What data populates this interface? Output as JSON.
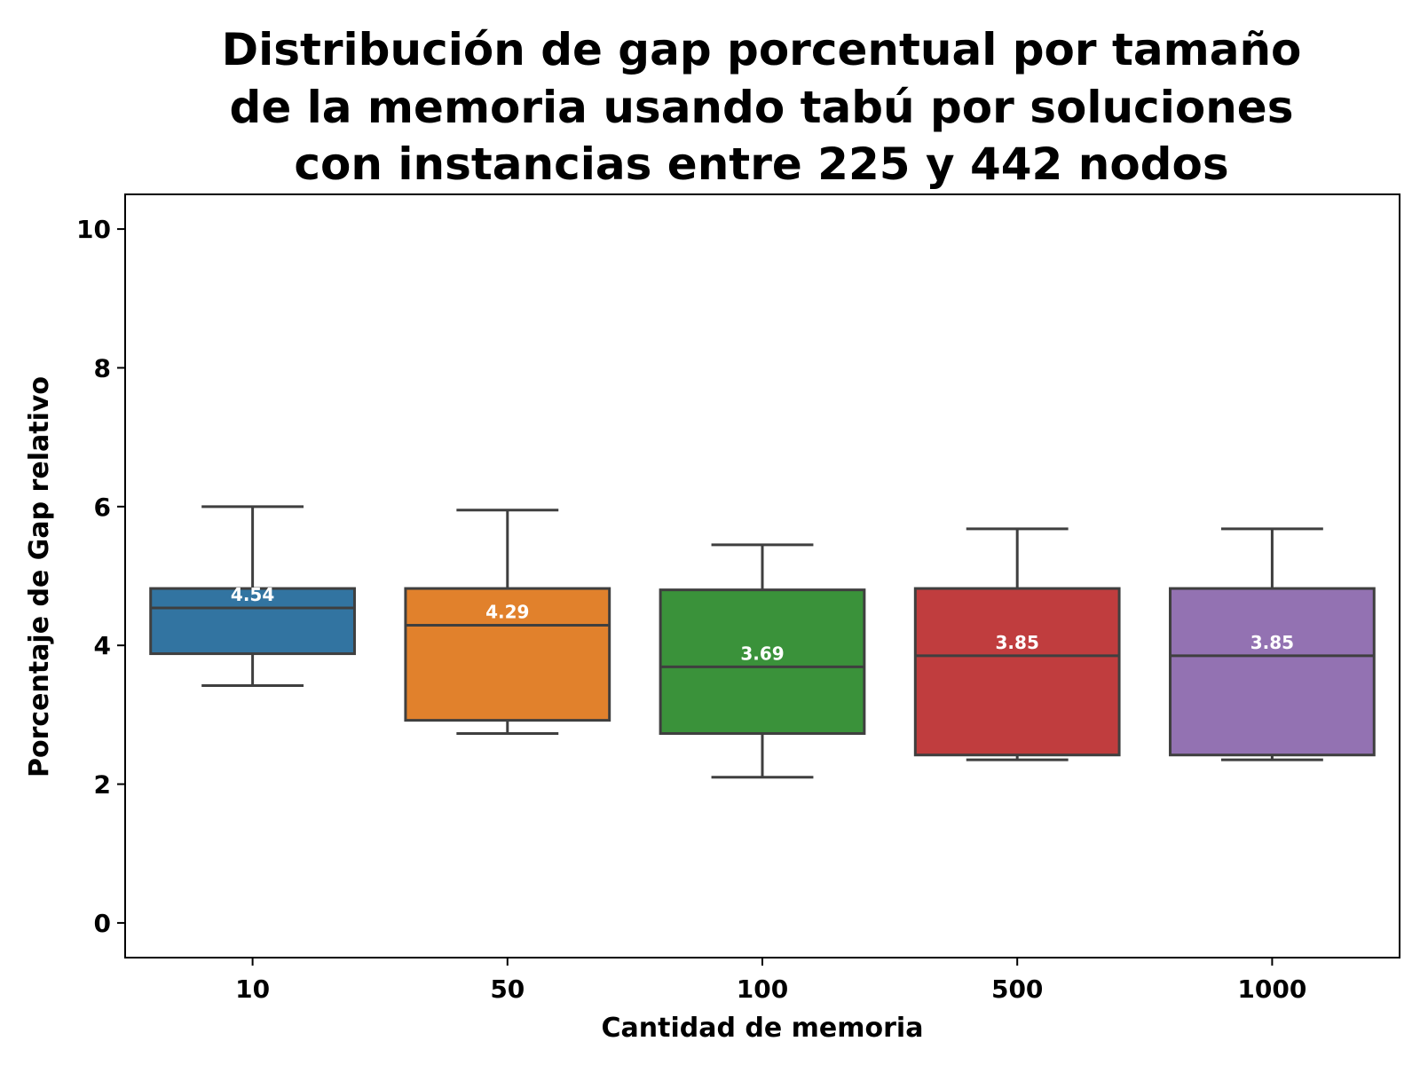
{
  "chart_data": {
    "type": "box",
    "title_lines": [
      "Distribución de gap porcentual por tamaño",
      "de la memoria usando tabú por soluciones",
      "con instancias entre 225 y 442 nodos"
    ],
    "xlabel": "Cantidad de memoria",
    "ylabel": "Porcentaje de Gap relativo",
    "ylim": [
      -0.5,
      10.5
    ],
    "yticks": [
      "0",
      "2",
      "4",
      "6",
      "8",
      "10"
    ],
    "ytick_values": [
      0,
      2,
      4,
      6,
      8,
      10
    ],
    "grid": false,
    "categories": [
      "10",
      "50",
      "100",
      "500",
      "1000"
    ],
    "boxes": [
      {
        "category": "10",
        "whisker_low": 3.42,
        "q1": 3.88,
        "median": 4.54,
        "q3": 4.82,
        "whisker_high": 6.0,
        "median_label": "4.54",
        "color": "#3274a1"
      },
      {
        "category": "50",
        "whisker_low": 2.73,
        "q1": 2.92,
        "median": 4.29,
        "q3": 4.82,
        "whisker_high": 5.95,
        "median_label": "4.29",
        "color": "#e1812c"
      },
      {
        "category": "100",
        "whisker_low": 2.1,
        "q1": 2.73,
        "median": 3.69,
        "q3": 4.8,
        "whisker_high": 5.45,
        "median_label": "3.69",
        "color": "#3a923a"
      },
      {
        "category": "500",
        "whisker_low": 2.35,
        "q1": 2.42,
        "median": 3.85,
        "q3": 4.82,
        "whisker_high": 5.68,
        "median_label": "3.85",
        "color": "#c03d3e"
      },
      {
        "category": "1000",
        "whisker_low": 2.35,
        "q1": 2.42,
        "median": 3.85,
        "q3": 4.82,
        "whisker_high": 5.68,
        "median_label": "3.85",
        "color": "#9372b2"
      }
    ]
  }
}
